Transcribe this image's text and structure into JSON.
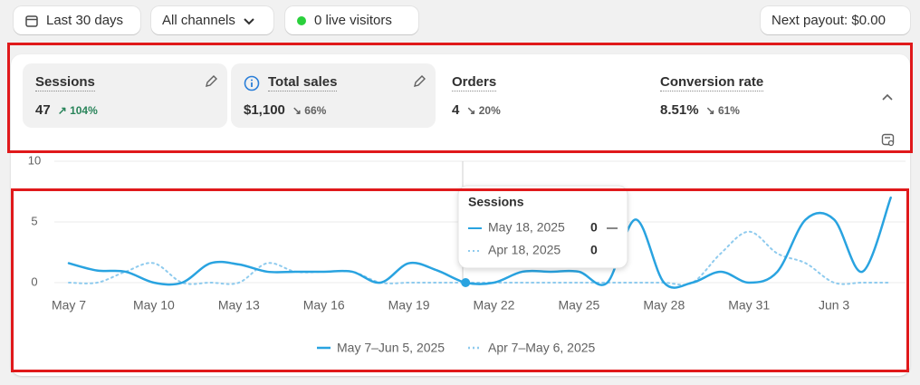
{
  "toolbar": {
    "date_range": "Last 30 days",
    "channels": "All channels",
    "live_visitors": "0 live visitors",
    "payout": "Next payout: $0.00"
  },
  "metrics": [
    {
      "label": "Sessions",
      "value": "47",
      "change": "104%"
    },
    {
      "label": "Total sales",
      "value": "$1,100",
      "change": "66%"
    },
    {
      "label": "Orders",
      "value": "4",
      "change": "20%"
    },
    {
      "label": "Conversion rate",
      "value": "8.51%",
      "change": "61%"
    }
  ],
  "chart_data": {
    "type": "line",
    "categories": [
      "May 7",
      null,
      null,
      "May 10",
      null,
      null,
      "May 13",
      null,
      null,
      "May 16",
      null,
      null,
      "May 19",
      null,
      null,
      "May 22",
      null,
      null,
      "May 25",
      null,
      null,
      "May 28",
      null,
      null,
      "May 31",
      null,
      null,
      "Jun 3",
      null,
      null
    ],
    "series": [
      {
        "name": "May 7–Jun 5, 2025",
        "color": "#29a3e0",
        "style": "solid",
        "values": [
          1.6,
          1,
          0.9,
          0,
          0,
          1.6,
          1.5,
          0.9,
          0.9,
          0.9,
          0.9,
          0,
          1.6,
          1,
          0,
          0,
          0.9,
          0.9,
          0.9,
          0,
          5.2,
          0,
          0,
          0.9,
          0,
          0.9,
          5.2,
          5.2,
          0.9,
          7
        ]
      },
      {
        "name": "Apr 7–May 6, 2025",
        "color": "#8fcbee",
        "style": "dotted",
        "values": [
          0,
          0,
          0.9,
          1.6,
          0,
          0,
          0,
          1.6,
          0.9,
          0.9,
          0.9,
          0,
          0,
          0,
          0,
          0,
          0,
          0,
          0,
          0,
          0,
          0,
          0,
          2.4,
          4.2,
          2.4,
          1.6,
          0,
          0,
          0
        ]
      }
    ],
    "ylim": [
      0,
      10
    ],
    "yticks": [
      0,
      5,
      10
    ],
    "grid": true,
    "tooltip": {
      "title": "Sessions",
      "rows": [
        {
          "date": "May 18, 2025",
          "value": "0"
        },
        {
          "date": "Apr 18, 2025",
          "value": "0"
        }
      ]
    }
  }
}
